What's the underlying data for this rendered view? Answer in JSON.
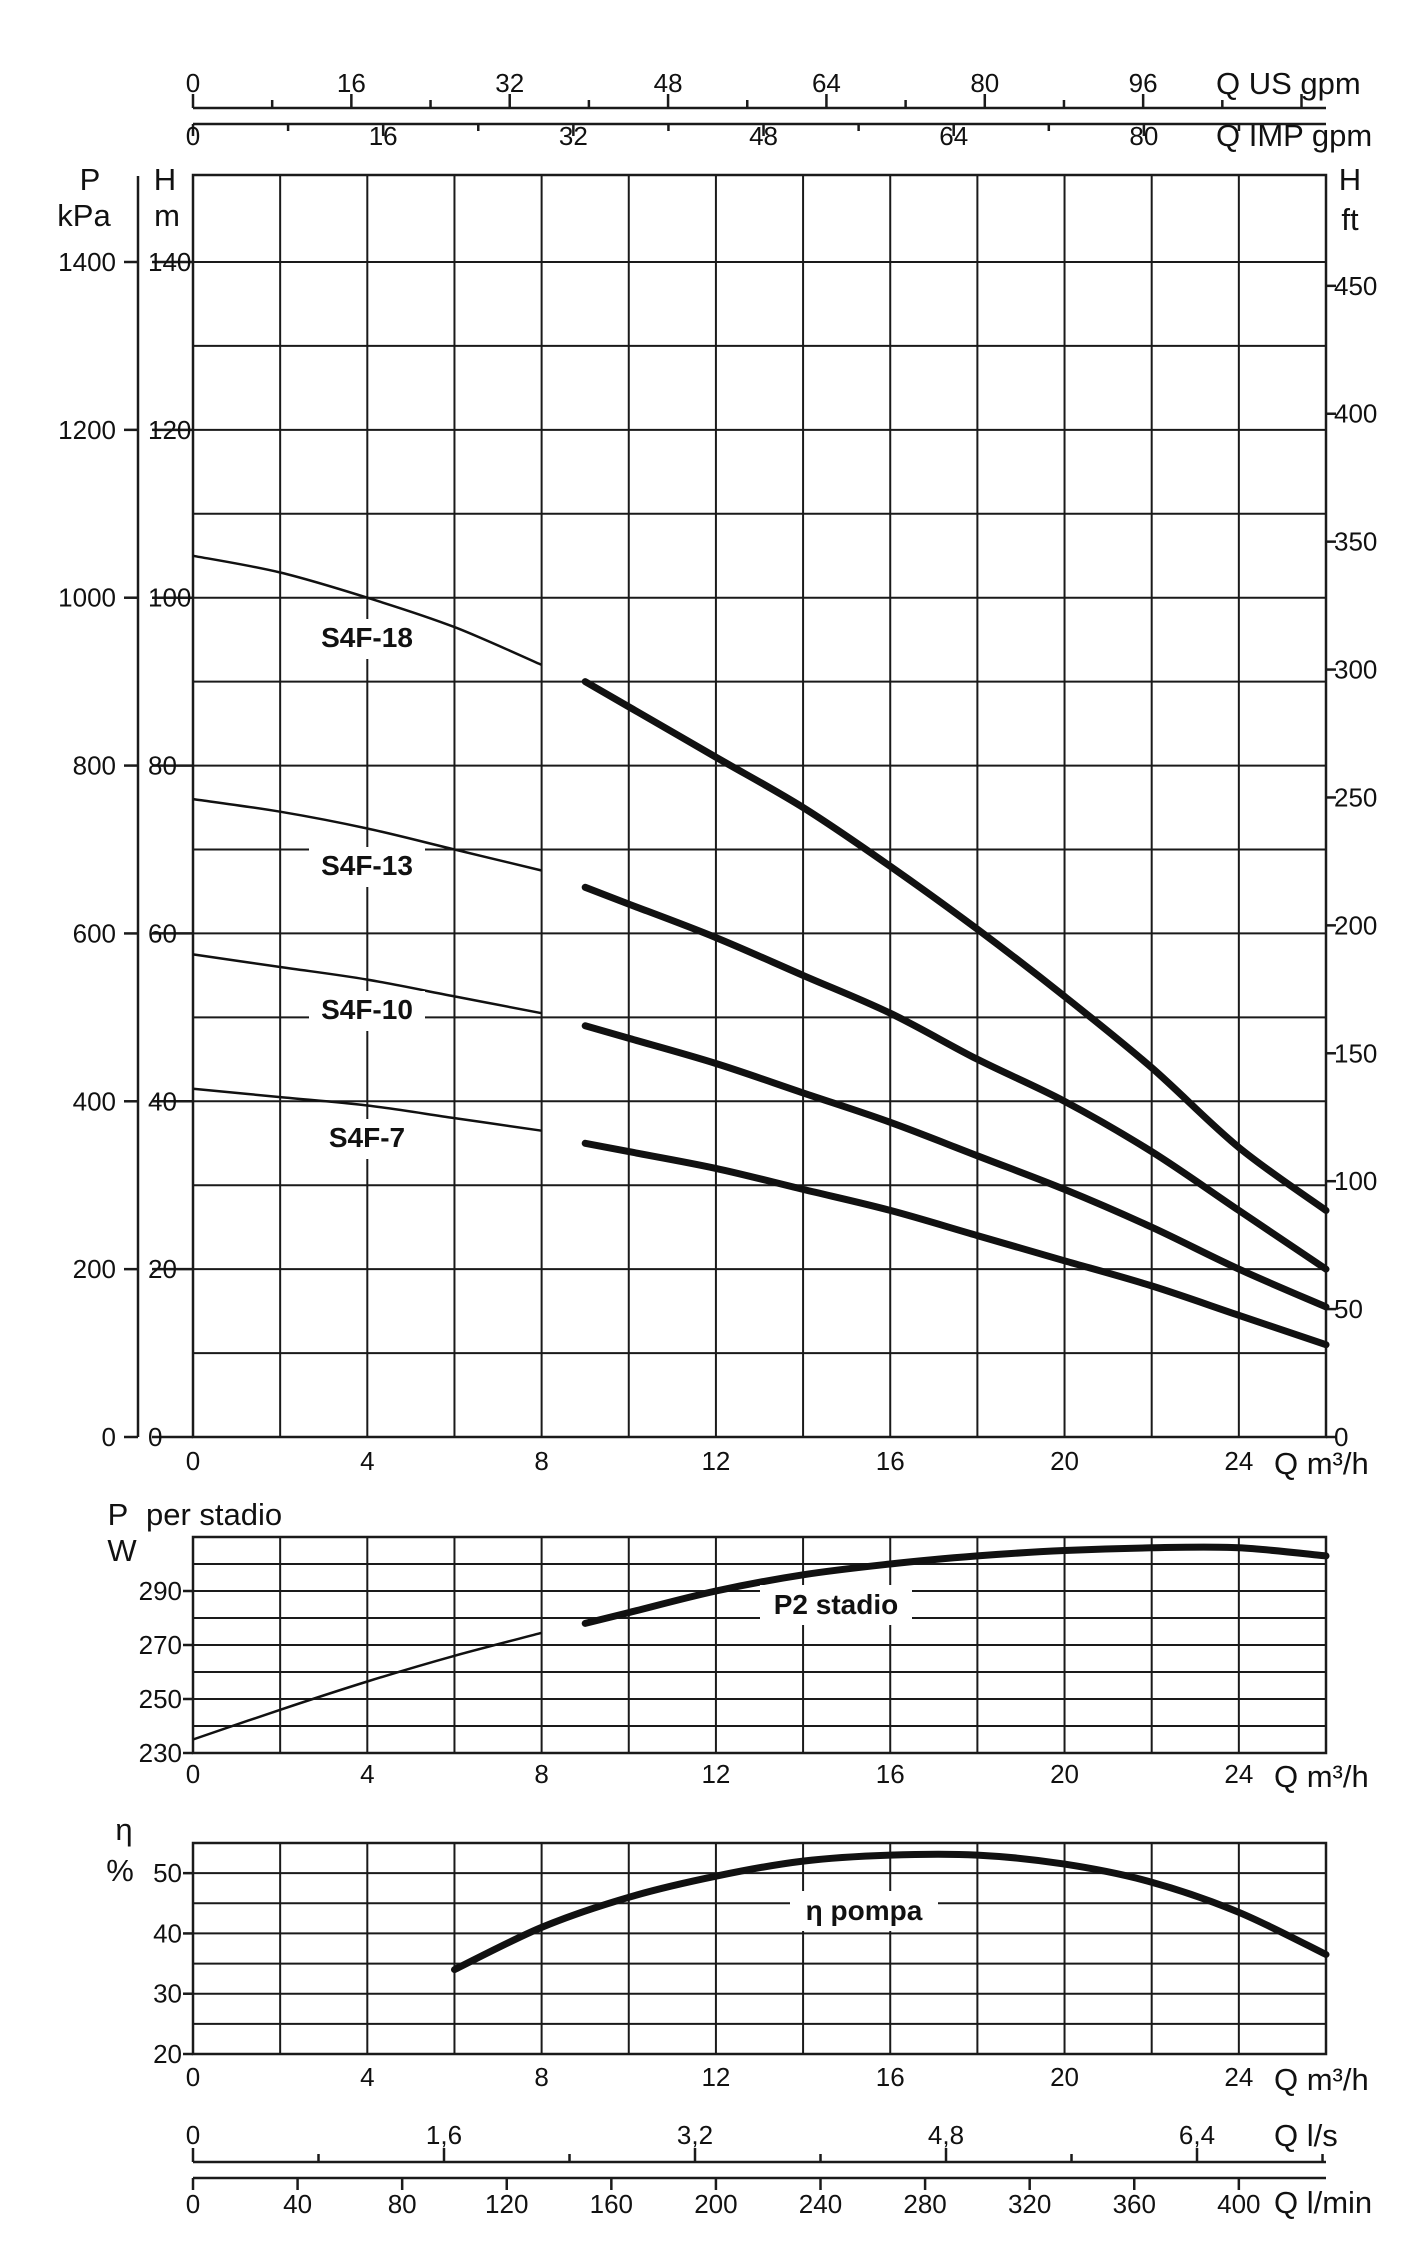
{
  "chart_data": [
    {
      "type": "line",
      "name": "head-chart",
      "x_unit": "Q m³/h",
      "y_left_units": [
        "P",
        "kPa"
      ],
      "y_left_h_units": [
        "H",
        "m"
      ],
      "y_right_units": [
        "H",
        "ft"
      ],
      "top_axis_us_label": "Q US gpm",
      "top_axis_imp_label": "Q IMP gpm",
      "x_ticks": [
        "0",
        "4",
        "8",
        "12",
        "16",
        "20",
        "24"
      ],
      "y_ticks_m": [
        "0",
        "20",
        "40",
        "60",
        "80",
        "100",
        "120",
        "140"
      ],
      "y_ticks_kpa": [
        "0",
        "200",
        "400",
        "600",
        "800",
        "1000",
        "1200",
        "1400"
      ],
      "y_ticks_ft": [
        "0",
        "50",
        "100",
        "150",
        "200",
        "250",
        "300",
        "350",
        "400",
        "450"
      ],
      "us_gpm_ticks": [
        "0",
        "16",
        "32",
        "48",
        "64",
        "80",
        "96"
      ],
      "imp_gpm_ticks": [
        "0",
        "16",
        "32",
        "48",
        "64",
        "80"
      ],
      "xlim": [
        0,
        26
      ],
      "ylim": [
        0,
        150
      ],
      "series": [
        {
          "name": "S4F-18",
          "x": [
            0,
            2,
            4,
            6,
            8,
            9,
            10,
            12,
            14,
            16,
            18,
            20,
            22,
            24,
            26
          ],
          "y": [
            105,
            103,
            100,
            96.5,
            92,
            90,
            87,
            81,
            75,
            68,
            60.5,
            52.5,
            44,
            34.5,
            27
          ]
        },
        {
          "name": "S4F-13",
          "x": [
            0,
            2,
            4,
            6,
            8,
            9,
            10,
            12,
            14,
            16,
            18,
            20,
            22,
            24,
            26
          ],
          "y": [
            76,
            74.5,
            72.5,
            70,
            67.5,
            65.5,
            63.5,
            59.5,
            55,
            50.5,
            45,
            40,
            34,
            27,
            20
          ]
        },
        {
          "name": "S4F-10",
          "x": [
            0,
            2,
            4,
            6,
            8,
            9,
            10,
            12,
            14,
            16,
            18,
            20,
            22,
            24,
            26
          ],
          "y": [
            57.5,
            56,
            54.5,
            52.5,
            50.5,
            49,
            47.5,
            44.5,
            41,
            37.5,
            33.5,
            29.5,
            25,
            20,
            15.5
          ]
        },
        {
          "name": "S4F-7",
          "x": [
            0,
            2,
            4,
            6,
            8,
            9,
            10,
            12,
            14,
            16,
            18,
            20,
            22,
            24,
            26
          ],
          "y": [
            41.5,
            40.5,
            39.5,
            38,
            36.5,
            35,
            34,
            32,
            29.5,
            27,
            24,
            21,
            18,
            14.5,
            11
          ]
        }
      ],
      "thin_until_x": 8.9
    },
    {
      "type": "line",
      "name": "power-chart",
      "y_label": "P",
      "y_label_suffix": "per stadio",
      "y_unit": "W",
      "x_unit": "Q m³/h",
      "x_ticks": [
        "0",
        "4",
        "8",
        "12",
        "16",
        "20",
        "24"
      ],
      "y_ticks": [
        "230",
        "250",
        "270",
        "290"
      ],
      "xlim": [
        0,
        26
      ],
      "ylim": [
        230,
        310
      ],
      "series": [
        {
          "name": "P2 stadio",
          "x": [
            0,
            2,
            4,
            6,
            8,
            9,
            10,
            12,
            14,
            16,
            18,
            20,
            22,
            24,
            26
          ],
          "y": [
            235,
            246,
            256.5,
            266,
            274.5,
            278,
            282,
            290,
            296,
            300,
            303,
            305,
            306,
            306,
            303
          ]
        }
      ],
      "thin_until_x": 8.9
    },
    {
      "type": "line",
      "name": "efficiency-chart",
      "y_label": "η",
      "y_unit": "%",
      "x_unit": "Q m³/h",
      "x_ticks": [
        "0",
        "4",
        "8",
        "12",
        "16",
        "20",
        "24"
      ],
      "y_ticks": [
        "20",
        "30",
        "40",
        "50"
      ],
      "xlim": [
        0,
        26
      ],
      "ylim": [
        20,
        55
      ],
      "series": [
        {
          "name": "η pompa",
          "x": [
            6,
            8,
            10,
            12,
            14,
            16,
            18,
            20,
            22,
            24,
            26
          ],
          "y": [
            34,
            41,
            46,
            49.5,
            52,
            53,
            53,
            51.5,
            48.5,
            43.5,
            36.5
          ]
        }
      ]
    },
    {
      "type": "axis",
      "name": "flow-units",
      "ls_label": "Q l/s",
      "lmin_label": "Q l/min",
      "ls_ticks": [
        "0",
        "1,6",
        "3,2",
        "4,8",
        "6,4"
      ],
      "lmin_ticks": [
        "0",
        "40",
        "80",
        "120",
        "160",
        "200",
        "240",
        "280",
        "320",
        "360",
        "400"
      ]
    }
  ]
}
